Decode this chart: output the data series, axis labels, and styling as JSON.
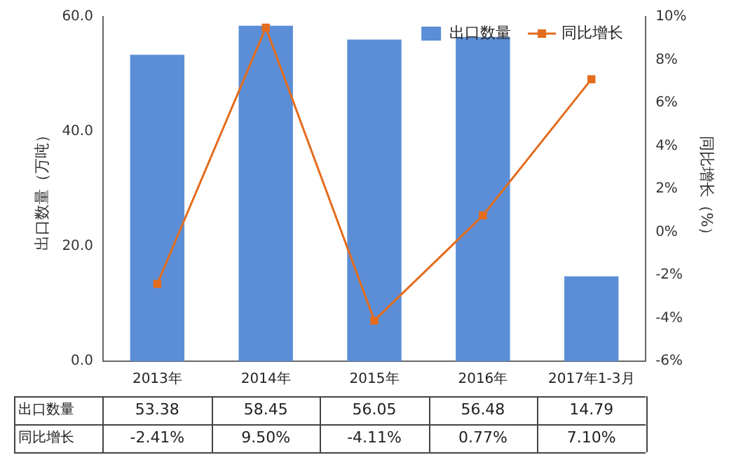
{
  "chart_data": {
    "type": "bar",
    "ylabel": "出口数量（万吨）",
    "y2label": "同比增长（%）",
    "categories": [
      "2013年",
      "2014年",
      "2015年",
      "2016年",
      "2017年1-3月"
    ],
    "series": [
      {
        "name": "出口数量",
        "color": "#5b8ed6",
        "values": [
          53.38,
          58.45,
          56.05,
          56.48,
          14.79
        ],
        "value_labels": [
          "53.38",
          "58.45",
          "56.05",
          "56.48",
          "14.79"
        ]
      },
      {
        "name": "同比增长",
        "type": "line",
        "axis": "y2",
        "color": "#e46c1c",
        "marker": "square",
        "values": [
          -2.41,
          9.5,
          -4.11,
          0.77,
          7.1
        ],
        "value_labels": [
          "-2.41%",
          "9.50%",
          "-4.11%",
          "0.77%",
          "7.10%"
        ]
      }
    ],
    "ylim": [
      0,
      60
    ],
    "yticks": [
      {
        "value": 0,
        "label": "0.0"
      },
      {
        "value": 20,
        "label": "20.0"
      },
      {
        "value": 40,
        "label": "40.0"
      },
      {
        "value": 60,
        "label": "60.0"
      }
    ],
    "y2lim": [
      -6,
      10
    ],
    "y2ticks": [
      {
        "value": -6,
        "label": "-6%"
      },
      {
        "value": -4,
        "label": "-4%"
      },
      {
        "value": -2,
        "label": "-2%"
      },
      {
        "value": 0,
        "label": "0%"
      },
      {
        "value": 2,
        "label": "2%"
      },
      {
        "value": 4,
        "label": "4%"
      },
      {
        "value": 6,
        "label": "6%"
      },
      {
        "value": 8,
        "label": "8%"
      },
      {
        "value": 10,
        "label": "10%"
      }
    ],
    "legend": "top right",
    "grid": false
  }
}
